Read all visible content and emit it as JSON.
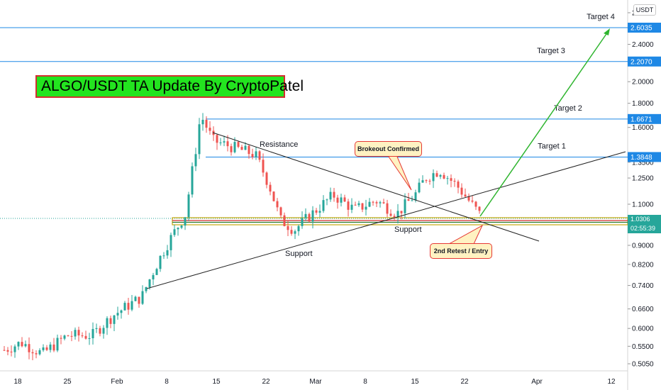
{
  "title": "ALGO/USDT TA Update By CryptoPatel",
  "unit": "USDT",
  "current_price": "1.0306",
  "countdown": "02:55:39",
  "colors": {
    "up": "#26a69a",
    "down": "#ef5350",
    "target_line": "#1e88e5",
    "arrow": "#2fb52f",
    "title_bg": "#23e41f",
    "title_border": "#d32f2f",
    "support_band": "#c6a80e"
  },
  "callouts": {
    "breakout": "Brokeout Confirmed",
    "retest": "2nd Retest / Entry"
  },
  "chart_data": {
    "type": "candlestick",
    "y_axis": {
      "scale": "log",
      "ticks": [
        "2.8000",
        "2.6000",
        "2.4000",
        "2.2000",
        "2.0000",
        "1.8000",
        "1.6000",
        "1.3500",
        "1.2500",
        "1.1000",
        "0.9000",
        "0.8200",
        "0.7400",
        "0.6600",
        "0.6000",
        "0.5500",
        "0.5050"
      ]
    },
    "x_axis": {
      "ticks": [
        "18",
        "25",
        "Feb",
        "8",
        "15",
        "22",
        "Mar",
        "8",
        "15",
        "22",
        "Apr",
        "12"
      ]
    },
    "levels": [
      {
        "label": "Target 4",
        "value": 2.6035,
        "price_label": "2.6035"
      },
      {
        "label": "Target 3",
        "value": 2.207,
        "price_label": "2.2070"
      },
      {
        "label": "Target 2",
        "value": 1.6671,
        "price_label": "1.6671"
      },
      {
        "label": "Target 1",
        "value": 1.3848,
        "price_label": "1.3848"
      }
    ],
    "annotations": [
      "Resistance",
      "Support",
      "Support"
    ],
    "support_zone": [
      1.0,
      1.03
    ]
  }
}
